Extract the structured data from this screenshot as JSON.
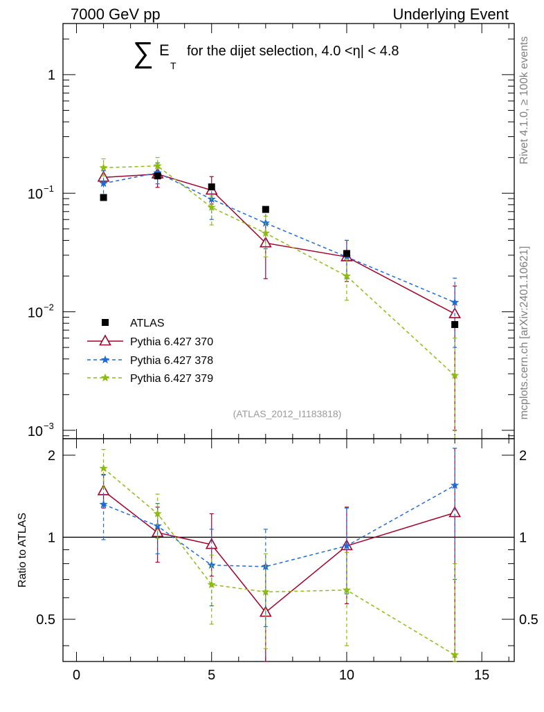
{
  "header": {
    "left": "7000 GeV pp",
    "right": "Underlying Event"
  },
  "side": {
    "rivet": "Rivet 4.1.0, ≥ 100k events",
    "mcplots": "mcplots.cern.ch [arXiv:2401.10621]"
  },
  "chart_data": [
    {
      "type": "scatter",
      "title": {
        "sigma": "∑",
        "e": "E",
        "t": "T",
        "text": "for the dijet selection, 4.0 <η| < 4.8"
      },
      "watermark": "(ATLAS_2012_I1183818)",
      "xlim": [
        -0.5,
        16.2
      ],
      "ylim": [
        0.00085,
        2.7
      ],
      "yscale": "log",
      "yticks": [
        {
          "value": 1,
          "label": "1"
        },
        {
          "value": 0.1,
          "label": "10",
          "exp": "−1"
        },
        {
          "value": 0.01,
          "label": "10",
          "exp": "−2"
        },
        {
          "value": 0.001,
          "label": "10",
          "exp": "−3"
        }
      ],
      "series": [
        {
          "name": "ATLAS",
          "legend": "ATLAS",
          "color": "#000000",
          "marker": "square",
          "x": [
            1,
            3,
            5,
            7,
            10,
            14
          ],
          "y": [
            0.092,
            0.14,
            0.113,
            0.073,
            0.031,
            0.0078
          ],
          "ylo": [
            0.088,
            0.133,
            0.108,
            0.07,
            0.029,
            0.0074
          ],
          "yhi": [
            0.096,
            0.147,
            0.118,
            0.076,
            0.033,
            0.0082
          ]
        },
        {
          "name": "Pythia 6.427 370",
          "legend": "Pythia 6.427 370",
          "color": "#a0002a",
          "marker": "triangle",
          "dash": "",
          "x": [
            1,
            3,
            5,
            7,
            10,
            14
          ],
          "y": [
            0.136,
            0.145,
            0.106,
            0.038,
            0.029,
            0.0096
          ],
          "ylo": [
            0.118,
            0.112,
            0.081,
            0.019,
            0.018,
            0.001
          ],
          "yhi": [
            0.155,
            0.18,
            0.138,
            0.057,
            0.04,
            0.0165
          ]
        },
        {
          "name": "Pythia 6.427 378",
          "legend": "Pythia 6.427 378",
          "color": "#1e6bd6",
          "marker": "star",
          "dash": "5,4",
          "x": [
            1,
            3,
            5,
            7,
            10,
            14
          ],
          "y": [
            0.121,
            0.149,
            0.089,
            0.056,
            0.029,
            0.012
          ],
          "ylo": [
            0.088,
            0.12,
            0.06,
            0.034,
            0.019,
            0.005
          ],
          "yhi": [
            0.155,
            0.18,
            0.12,
            0.075,
            0.04,
            0.0192
          ]
        },
        {
          "name": "Pythia 6.427 379",
          "legend": "Pythia 6.427 379",
          "color": "#8dbb14",
          "marker": "star",
          "dash": "5,4",
          "x": [
            1,
            3,
            5,
            7,
            10,
            14
          ],
          "y": [
            0.164,
            0.17,
            0.076,
            0.046,
            0.02,
            0.0029
          ],
          "ylo": [
            0.14,
            0.14,
            0.054,
            0.029,
            0.0125,
            0.0005
          ],
          "yhi": [
            0.195,
            0.2,
            0.095,
            0.064,
            0.028,
            0.006
          ]
        }
      ]
    },
    {
      "type": "scatter",
      "ylabel": "Ratio to ATLAS",
      "xlim": [
        -0.5,
        16.2
      ],
      "ylim": [
        0.35,
        2.3
      ],
      "yscale": "log",
      "xticks": [
        0,
        5,
        10,
        15
      ],
      "yticks": [
        {
          "value": 2,
          "label": "2"
        },
        {
          "value": 1,
          "label": "1"
        },
        {
          "value": 0.5,
          "label": "0.5"
        }
      ],
      "reference": 1,
      "series": [
        {
          "name": "Pythia 6.427 370",
          "color": "#a0002a",
          "marker": "triangle",
          "dash": "",
          "x": [
            1,
            3,
            5,
            7,
            10,
            14
          ],
          "y": [
            1.48,
            1.04,
            0.94,
            0.53,
            0.93,
            1.23
          ],
          "ylo": [
            1.28,
            0.81,
            0.72,
            0.27,
            0.57,
            0.13
          ],
          "yhi": [
            1.7,
            1.29,
            1.22,
            0.79,
            1.29,
            2.12
          ]
        },
        {
          "name": "Pythia 6.427 378",
          "color": "#1e6bd6",
          "marker": "star",
          "dash": "5,4",
          "x": [
            1,
            3,
            5,
            7,
            10,
            14
          ],
          "y": [
            1.32,
            1.1,
            0.79,
            0.78,
            0.93,
            1.55
          ],
          "ylo": [
            0.98,
            0.87,
            0.56,
            0.47,
            0.62,
            0.7
          ],
          "yhi": [
            1.69,
            1.33,
            1.07,
            1.07,
            1.28,
            2.12
          ]
        },
        {
          "name": "Pythia 6.427 379",
          "color": "#8dbb14",
          "marker": "star",
          "dash": "5,4",
          "x": [
            1,
            3,
            5,
            7,
            10,
            14
          ],
          "y": [
            1.79,
            1.22,
            0.67,
            0.63,
            0.64,
            0.37
          ],
          "ylo": [
            1.52,
            0.99,
            0.48,
            0.39,
            0.4,
            0.06
          ],
          "yhi": [
            2.1,
            1.44,
            0.86,
            0.87,
            0.88,
            0.8
          ]
        }
      ]
    }
  ]
}
